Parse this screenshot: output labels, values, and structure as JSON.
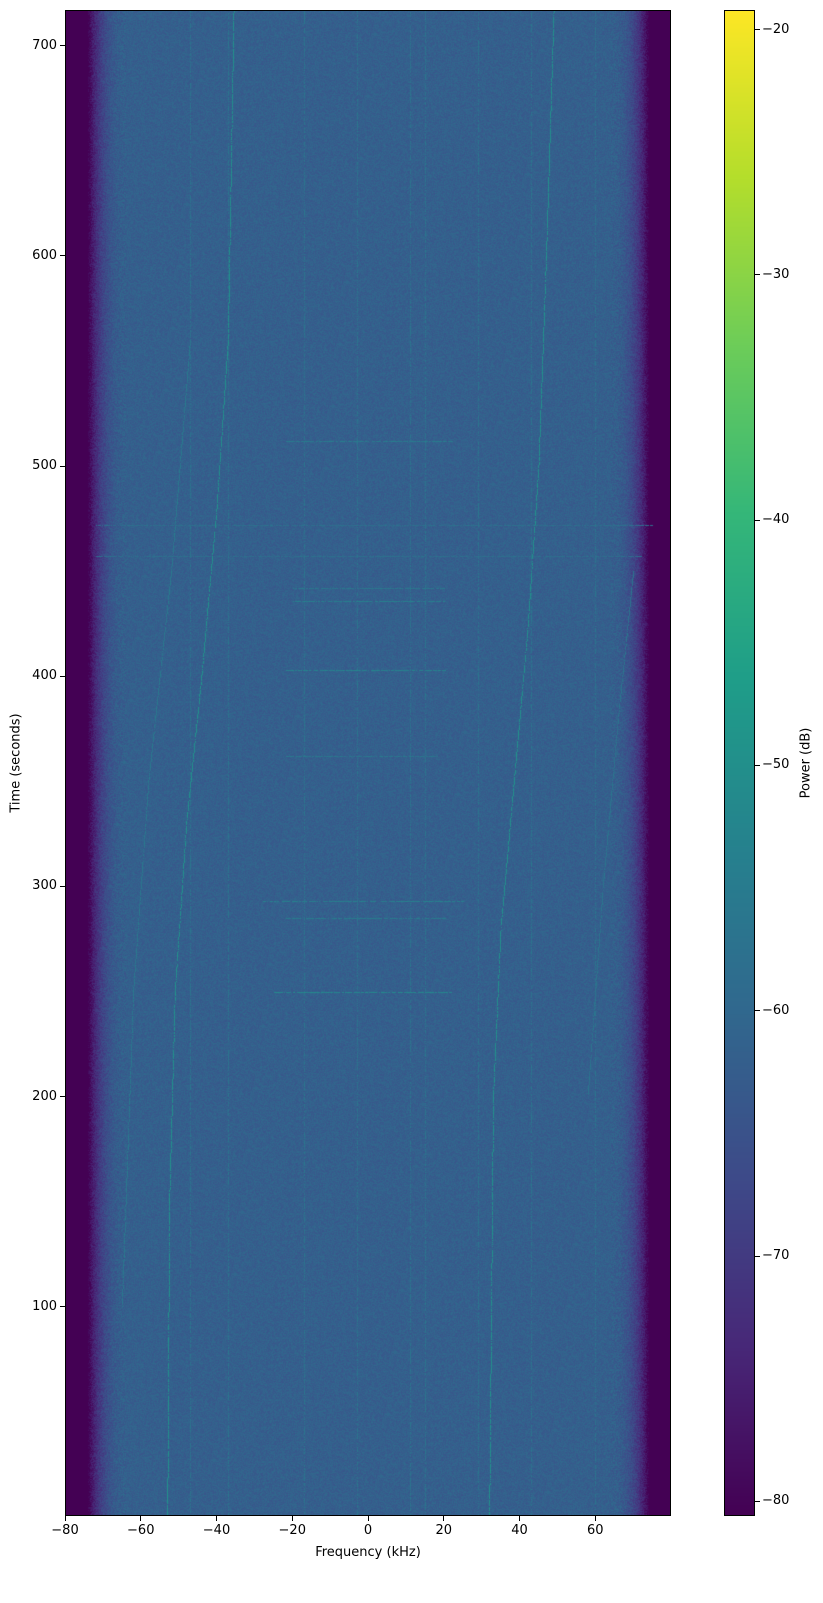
{
  "chart_data": {
    "type": "heatmap",
    "title": "",
    "xlabel": "Frequency (kHz)",
    "ylabel": "Time (seconds)",
    "colorbar_label": "Power (dB)",
    "colormap": "viridis",
    "xlim": [
      -80,
      80
    ],
    "ylim": [
      0.5,
      717
    ],
    "clim": [
      -80.6,
      -19.2
    ],
    "xticks": [
      -80,
      -60,
      -40,
      -20,
      0,
      20,
      40,
      60
    ],
    "xtick_labels": [
      "−80",
      "−60",
      "−40",
      "−20",
      "0",
      "20",
      "40",
      "60"
    ],
    "yticks": [
      100,
      200,
      300,
      400,
      500,
      600,
      700
    ],
    "ytick_labels": [
      "100",
      "200",
      "300",
      "400",
      "500",
      "600",
      "700"
    ],
    "cticks": [
      -80,
      -70,
      -60,
      -50,
      -40,
      -30,
      -20
    ],
    "ctick_labels": [
      "−80",
      "−70",
      "−60",
      "−50",
      "−40",
      "−30",
      "−20"
    ],
    "grid": false,
    "noise_floor_db": -62,
    "band_edge_khz": 72,
    "out_of_band_db": -81,
    "drifting_traces": [
      {
        "points": [
          [
            -53,
            0
          ],
          [
            -52.5,
            150
          ],
          [
            -51,
            250
          ],
          [
            -48,
            330
          ],
          [
            -44,
            400
          ],
          [
            -40,
            480
          ],
          [
            -37,
            560
          ],
          [
            -35.5,
            717
          ]
        ],
        "db": -50
      },
      {
        "points": [
          [
            32,
            0
          ],
          [
            33,
            200
          ],
          [
            35,
            280
          ],
          [
            38.5,
            350
          ],
          [
            42,
            420
          ],
          [
            45,
            500
          ],
          [
            47,
            600
          ],
          [
            49,
            717
          ]
        ],
        "db": -50
      },
      {
        "points": [
          [
            -65,
            100
          ],
          [
            -62,
            250
          ],
          [
            -58,
            350
          ],
          [
            -52,
            450
          ],
          [
            -47,
            560
          ]
        ],
        "db": -56
      },
      {
        "points": [
          [
            58,
            200
          ],
          [
            62,
            300
          ],
          [
            66,
            380
          ],
          [
            70,
            450
          ]
        ],
        "db": -57
      }
    ],
    "vertical_lines_khz": [
      -47,
      -37,
      -17,
      -3,
      11,
      15,
      29,
      43,
      60
    ],
    "horizontal_bursts": [
      {
        "t": 250,
        "from": -25,
        "to": 22,
        "db": -52
      },
      {
        "t": 285,
        "from": -22,
        "to": 20,
        "db": -55
      },
      {
        "t": 293,
        "from": -28,
        "to": 25,
        "db": -54
      },
      {
        "t": 362,
        "from": -22,
        "to": 18,
        "db": -56
      },
      {
        "t": 403,
        "from": -22,
        "to": 20,
        "db": -53
      },
      {
        "t": 436,
        "from": -20,
        "to": 20,
        "db": -54
      },
      {
        "t": 442,
        "from": -20,
        "to": 20,
        "db": -56
      },
      {
        "t": 457,
        "from": -72,
        "to": 72,
        "db": -58
      },
      {
        "t": 472,
        "from": -72,
        "to": 75,
        "db": -58
      },
      {
        "t": 512,
        "from": -22,
        "to": 22,
        "db": -55
      }
    ]
  }
}
